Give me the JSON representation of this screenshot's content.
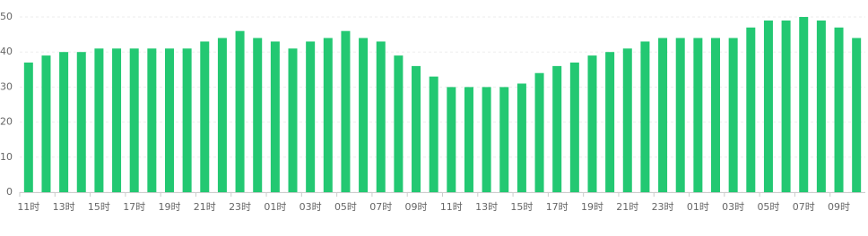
{
  "chart_data": {
    "type": "bar",
    "color": "#23c872",
    "categories": [
      "11时",
      null,
      "13时",
      null,
      "15时",
      null,
      "17时",
      null,
      "19时",
      null,
      "21时",
      null,
      "23时",
      null,
      "01时",
      null,
      "03时",
      null,
      "05时",
      null,
      "07时",
      null,
      "09时",
      null,
      "11时",
      null,
      "13时",
      null,
      "15时",
      null,
      "17时",
      null,
      "19时",
      null,
      "21时",
      null,
      "23时",
      null,
      "01时",
      null,
      "03时",
      null,
      "05时",
      null,
      "07时",
      null,
      "09时",
      null
    ],
    "values": [
      37,
      39,
      40,
      40,
      41,
      41,
      41,
      41,
      41,
      41,
      43,
      44,
      46,
      44,
      43,
      41,
      43,
      44,
      46,
      44,
      43,
      39,
      36,
      33,
      30,
      30,
      30,
      30,
      31,
      34,
      36,
      37,
      39,
      40,
      41,
      43,
      44,
      44,
      44,
      44,
      44,
      47,
      49,
      49,
      50,
      49,
      47,
      44
    ],
    "ylim": [
      0,
      50
    ],
    "yticks": [
      0,
      10,
      20,
      30,
      40,
      50
    ],
    "grid": true
  }
}
